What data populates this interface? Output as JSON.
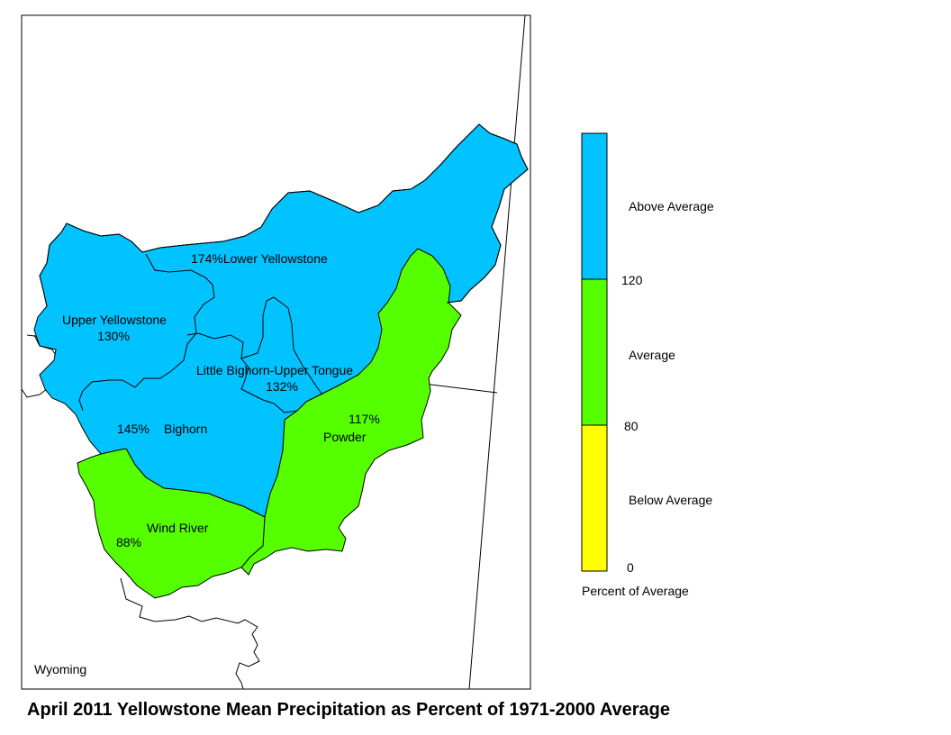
{
  "title": "April 2011 Yellowstone Mean Precipitation as Percent of 1971-2000 Average",
  "state_label": "Wyoming",
  "colors": {
    "above": "#00c3ff",
    "average": "#55ff00",
    "below": "#ffff00",
    "border": "#000000"
  },
  "basins": {
    "lower_yellowstone": {
      "name": "Lower Yellowstone",
      "pct": "174%",
      "category": "above"
    },
    "upper_yellowstone": {
      "name": "Upper Yellowstone",
      "pct": "130%",
      "category": "above"
    },
    "little_bighorn": {
      "name": "Little Bighorn-Upper Tongue",
      "pct": "132%",
      "category": "above"
    },
    "bighorn": {
      "name": "Bighorn",
      "pct": "145%",
      "category": "above"
    },
    "powder": {
      "name": "Powder",
      "pct": "117%",
      "category": "average"
    },
    "wind_river": {
      "name": "Wind River",
      "pct": "88%",
      "category": "average"
    }
  },
  "legend": {
    "title": "Percent of Average",
    "categories": [
      {
        "label": "Above Average",
        "color_key": "above"
      },
      {
        "label": "Average",
        "color_key": "average"
      },
      {
        "label": "Below Average",
        "color_key": "below"
      }
    ],
    "ticks": [
      "120",
      "80",
      "0"
    ]
  }
}
